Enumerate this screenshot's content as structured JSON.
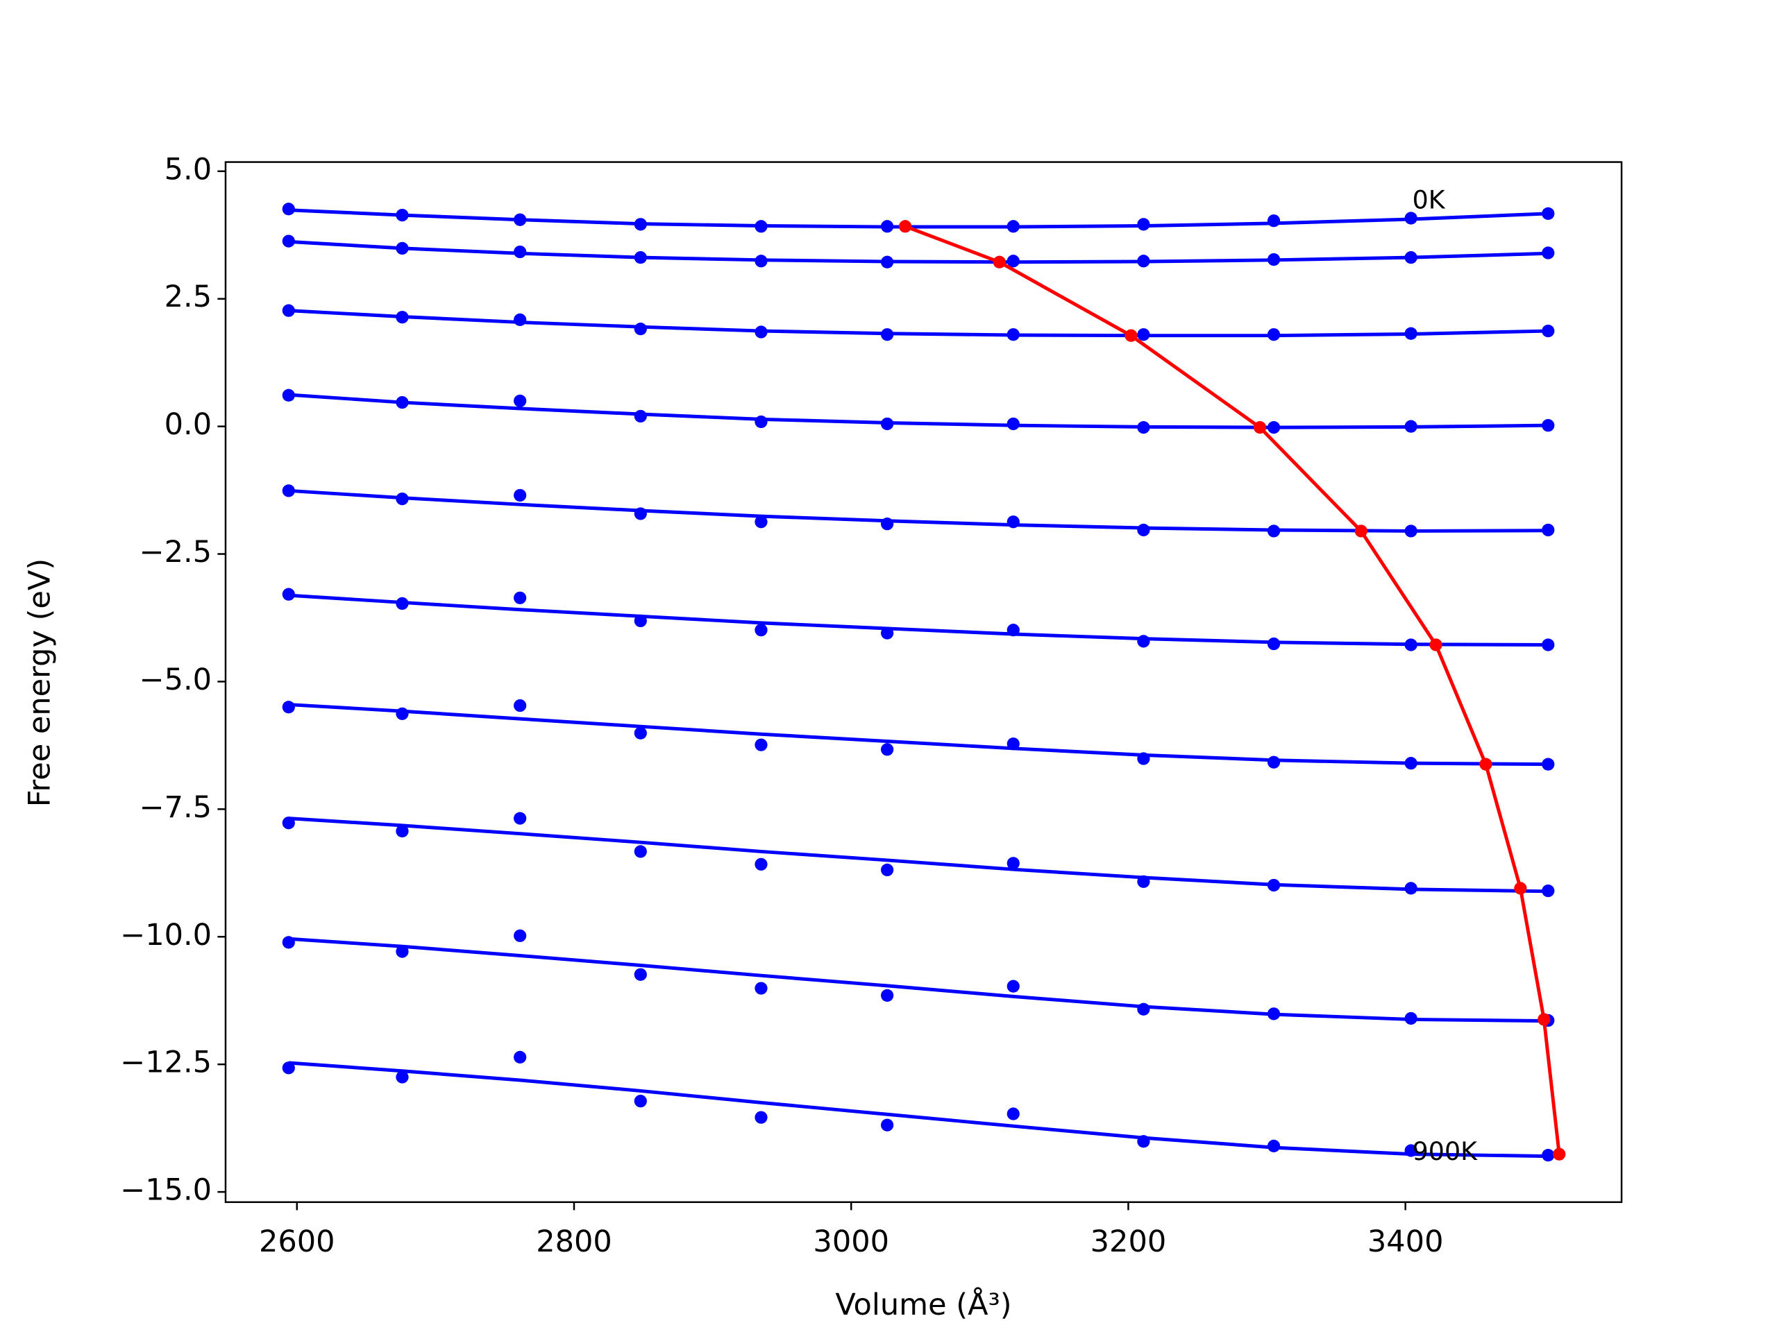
{
  "chart_data": {
    "type": "scatter",
    "xlabel": "Volume (Å³)",
    "ylabel": "Free energy (eV)",
    "x": [
      2594,
      2676,
      2761,
      2848,
      2935,
      3026,
      3117,
      3211,
      3305,
      3404,
      3503
    ],
    "xlim": [
      2548.5,
      3556
    ],
    "ylim": [
      -15.2,
      5.18
    ],
    "xticks": [
      2600,
      2800,
      3000,
      3200,
      3400
    ],
    "yticks": [
      {
        "value": 5.0,
        "label": "5.0"
      },
      {
        "value": 2.5,
        "label": "2.5"
      },
      {
        "value": 0.0,
        "label": "0.0"
      },
      {
        "value": -2.5,
        "label": "−2.5"
      },
      {
        "value": -5.0,
        "label": "−5.0"
      },
      {
        "value": -7.5,
        "label": "−7.5"
      },
      {
        "value": -10.0,
        "label": "−10.0"
      },
      {
        "value": -12.5,
        "label": "−12.5"
      },
      {
        "value": -15.0,
        "label": "−15.0"
      }
    ],
    "grid": false,
    "series": [
      {
        "color": "#0000ff",
        "values": [
          4.26,
          4.14,
          4.05,
          3.96,
          3.92,
          3.92,
          3.92,
          3.96,
          4.03,
          4.08,
          4.17
        ],
        "fit": [
          4.24,
          4.14,
          4.05,
          3.97,
          3.93,
          3.91,
          3.91,
          3.93,
          3.98,
          4.06,
          4.17
        ]
      },
      {
        "color": "#0000ff",
        "values": [
          3.63,
          3.49,
          3.42,
          3.31,
          3.24,
          3.22,
          3.24,
          3.24,
          3.27,
          3.31,
          3.4
        ],
        "fit": [
          3.62,
          3.49,
          3.39,
          3.31,
          3.26,
          3.23,
          3.22,
          3.23,
          3.26,
          3.31,
          3.39
        ]
      },
      {
        "color": "#0000ff",
        "values": [
          2.27,
          2.14,
          2.09,
          1.91,
          1.85,
          1.8,
          1.8,
          1.8,
          1.8,
          1.82,
          1.87
        ],
        "fit": [
          2.27,
          2.15,
          2.04,
          1.95,
          1.87,
          1.82,
          1.79,
          1.78,
          1.78,
          1.81,
          1.87
        ]
      },
      {
        "color": "#0000ff",
        "values": [
          0.61,
          0.47,
          0.5,
          0.2,
          0.09,
          0.05,
          0.05,
          -0.02,
          -0.02,
          0.0,
          0.02
        ],
        "fit": [
          0.62,
          0.47,
          0.35,
          0.24,
          0.14,
          0.07,
          0.02,
          -0.01,
          -0.02,
          -0.01,
          0.02
        ]
      },
      {
        "color": "#0000ff",
        "values": [
          -1.26,
          -1.42,
          -1.35,
          -1.71,
          -1.87,
          -1.91,
          -1.87,
          -2.03,
          -2.05,
          -2.05,
          -2.03
        ],
        "fit": [
          -1.26,
          -1.4,
          -1.53,
          -1.65,
          -1.76,
          -1.85,
          -1.93,
          -1.99,
          -2.03,
          -2.05,
          -2.04
        ]
      },
      {
        "color": "#0000ff",
        "values": [
          -3.29,
          -3.47,
          -3.36,
          -3.81,
          -3.99,
          -4.05,
          -3.99,
          -4.21,
          -4.26,
          -4.28,
          -4.28
        ],
        "fit": [
          -3.31,
          -3.45,
          -3.59,
          -3.72,
          -3.85,
          -3.96,
          -4.07,
          -4.16,
          -4.23,
          -4.27,
          -4.28
        ]
      },
      {
        "color": "#0000ff",
        "values": [
          -5.5,
          -5.63,
          -5.47,
          -6.01,
          -6.24,
          -6.33,
          -6.22,
          -6.51,
          -6.58,
          -6.6,
          -6.62
        ],
        "fit": [
          -5.45,
          -5.58,
          -5.73,
          -5.88,
          -6.03,
          -6.17,
          -6.31,
          -6.44,
          -6.54,
          -6.6,
          -6.62
        ]
      },
      {
        "color": "#0000ff",
        "values": [
          -7.77,
          -7.93,
          -7.68,
          -8.33,
          -8.58,
          -8.69,
          -8.56,
          -8.92,
          -8.99,
          -9.05,
          -9.1
        ],
        "fit": [
          -7.68,
          -7.82,
          -7.98,
          -8.15,
          -8.33,
          -8.5,
          -8.68,
          -8.84,
          -8.98,
          -9.07,
          -9.11
        ]
      },
      {
        "color": "#0000ff",
        "values": [
          -10.11,
          -10.29,
          -9.98,
          -10.74,
          -11.01,
          -11.15,
          -10.97,
          -11.42,
          -11.51,
          -11.6,
          -11.64
        ],
        "fit": [
          -10.04,
          -10.19,
          -10.37,
          -10.56,
          -10.76,
          -10.96,
          -11.17,
          -11.37,
          -11.52,
          -11.62,
          -11.65
        ]
      },
      {
        "color": "#0000ff",
        "values": [
          -12.57,
          -12.75,
          -12.36,
          -13.22,
          -13.54,
          -13.69,
          -13.47,
          -14.01,
          -14.1,
          -14.19,
          -14.28
        ],
        "fit": [
          -12.47,
          -12.63,
          -12.81,
          -13.02,
          -13.25,
          -13.48,
          -13.71,
          -13.94,
          -14.13,
          -14.26,
          -14.3
        ]
      }
    ],
    "minima": {
      "color": "#ff0000",
      "x": [
        3039,
        3107,
        3202,
        3295,
        3368,
        3422,
        3458,
        3483,
        3500,
        3511
      ],
      "values": [
        3.92,
        3.22,
        1.78,
        -0.02,
        -2.05,
        -4.28,
        -6.62,
        -9.05,
        -11.62,
        -14.26
      ]
    },
    "annotations": [
      "0K",
      "900K"
    ]
  }
}
